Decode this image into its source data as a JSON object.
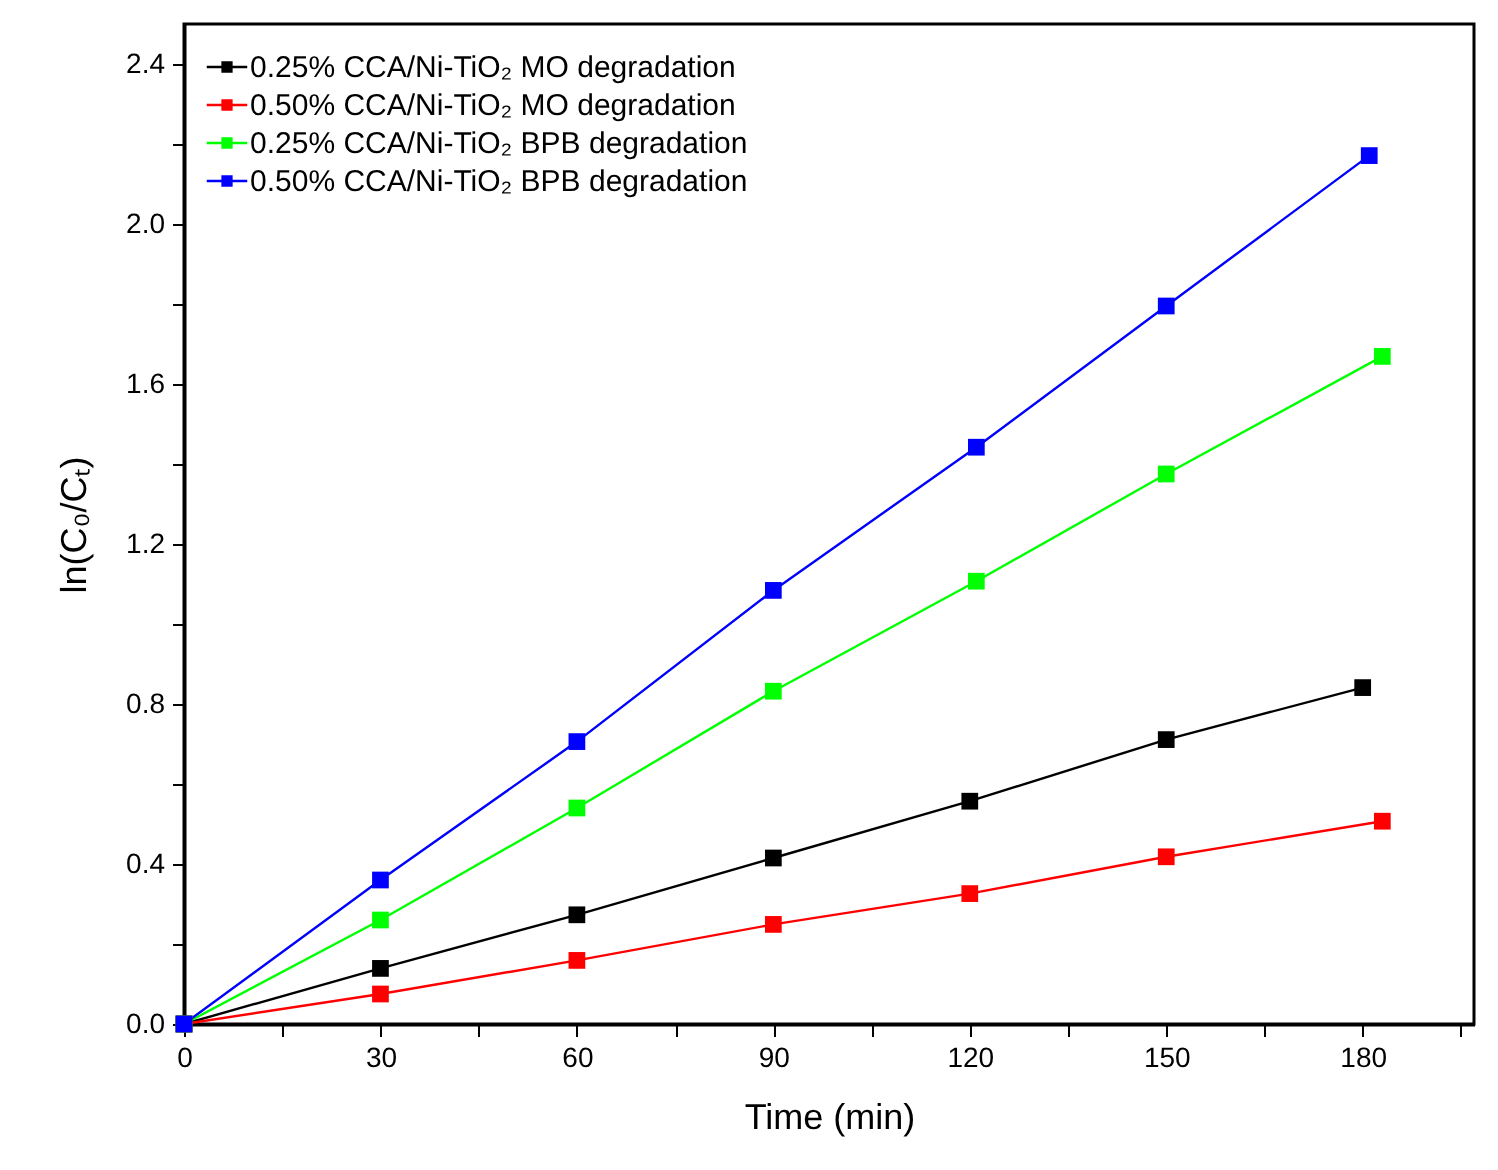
{
  "chart_data": {
    "type": "line",
    "xlabel": "Time (min)",
    "ylabel": "ln(C₀/Cₜ)",
    "xlim": [
      0,
      197
    ],
    "ylim": [
      0,
      2.5
    ],
    "xticks": [
      0,
      {
        "value": 15,
        "label": null
      },
      30,
      {
        "value": 45,
        "label": null
      },
      60,
      {
        "value": 75,
        "label": null
      },
      90,
      {
        "value": 105,
        "label": null
      },
      120,
      {
        "value": 135,
        "label": null
      },
      150,
      {
        "value": 165,
        "label": null
      },
      180,
      {
        "value": 195,
        "label": null
      }
    ],
    "yticks": [
      {
        "value": 0,
        "label": "0.0"
      },
      {
        "value": 0.2,
        "label": null
      },
      {
        "value": 0.4,
        "label": "0.4"
      },
      {
        "value": 0.6,
        "label": null
      },
      {
        "value": 0.8,
        "label": "0.8"
      },
      {
        "value": 1.0,
        "label": null
      },
      {
        "value": 1.2,
        "label": "1.2"
      },
      {
        "value": 1.4,
        "label": null
      },
      {
        "value": 1.6,
        "label": "1.6"
      },
      {
        "value": 1.8,
        "label": null
      },
      {
        "value": 2.0,
        "label": "2.0"
      },
      {
        "value": 2.2,
        "label": null
      },
      {
        "value": 2.4,
        "label": "2.4"
      }
    ],
    "marker": "square",
    "line_style": "solid",
    "legend": "top left",
    "series": [
      {
        "name": "0.25% CCA/Ni-TiO₂ MO degradation",
        "color": "#000000",
        "x": [
          0,
          30,
          60,
          90,
          120,
          150,
          180
        ],
        "values": [
          0,
          0.139,
          0.273,
          0.415,
          0.557,
          0.711,
          0.841
        ]
      },
      {
        "name": "0.50% CCA/Ni-TiO₂ MO degradation",
        "color": "#ff0000",
        "x": [
          0,
          30,
          60,
          90,
          120,
          150,
          183
        ],
        "values": [
          0,
          0.075,
          0.159,
          0.249,
          0.326,
          0.418,
          0.507
        ]
      },
      {
        "name": "0.25% CCA/Ni-TiO₂ BPB degradation",
        "color": "#00ff00",
        "x": [
          0,
          30,
          60,
          90,
          121,
          150,
          183
        ],
        "values": [
          0,
          0.26,
          0.54,
          0.832,
          1.107,
          1.375,
          1.669
        ]
      },
      {
        "name": "0.50% CCA/Ni-TiO₂ BPB degradation",
        "color": "#0000ff",
        "x": [
          0,
          30,
          60,
          90,
          121,
          150,
          181
        ],
        "values": [
          0,
          0.36,
          0.706,
          1.084,
          1.442,
          1.795,
          2.171
        ]
      }
    ]
  }
}
